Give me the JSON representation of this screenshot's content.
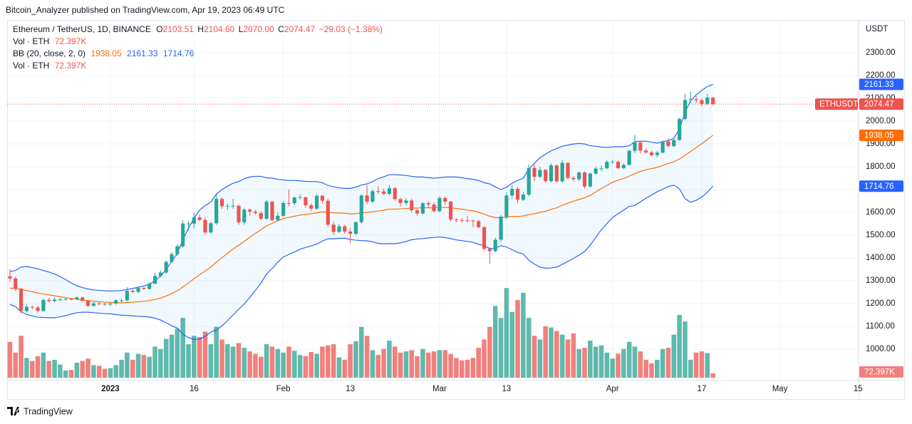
{
  "chart_data": {
    "type": "candlestick",
    "publisher_line": "Bitcoin_Analyzer published on TradingView.com, Apr 19, 2023 06:49 UTC",
    "symbol": "Ethereum / TetherUS, 1D, BINANCE",
    "ohlc_prefixes": [
      "O",
      "H",
      "L",
      "C"
    ],
    "high_label": "2104.60",
    "low_label": "2070.00",
    "change": "−29.03 (−1.38%)",
    "volume_title": "Vol · ETH",
    "last_volume_label": "72.397K",
    "currency": "USDT",
    "ticker": "ETHUSDT",
    "brand": "TradingView",
    "up_color": "#26a69a",
    "down_color": "#ef5350",
    "volume_up_color": "#5fb9ac",
    "volume_down_color": "#f0807c",
    "grid": true,
    "ylim": [
      868.75,
      2443.75
    ],
    "yticks": [
      {
        "value": 1000,
        "label": "1000.00"
      },
      {
        "value": 1100,
        "label": "1100.00"
      },
      {
        "value": 1200,
        "label": "1200.00"
      },
      {
        "value": 1300,
        "label": "1300.00"
      },
      {
        "value": 1400,
        "label": "1400.00"
      },
      {
        "value": 1500,
        "label": "1500.00"
      },
      {
        "value": 1600,
        "label": "1600.00"
      },
      {
        "value": 1700,
        "label": "1700.00"
      },
      {
        "value": 1800,
        "label": "1800.00"
      },
      {
        "value": 1900,
        "label": "1900.00"
      },
      {
        "value": 2000,
        "label": "2000.00"
      },
      {
        "value": 2100,
        "label": "2100.00"
      },
      {
        "value": 2200,
        "label": "2200.00"
      },
      {
        "value": 2300,
        "label": "2300.00"
      }
    ],
    "xlim": [
      -0.5,
      152.1
    ],
    "xticks": [
      {
        "value": 18,
        "label": "2023"
      },
      {
        "value": 33,
        "label": "16"
      },
      {
        "value": 49,
        "label": "Feb"
      },
      {
        "value": 61,
        "label": "13"
      },
      {
        "value": 77,
        "label": "Mar"
      },
      {
        "value": 89,
        "label": "13"
      },
      {
        "value": 108,
        "label": "Apr"
      },
      {
        "value": 124,
        "label": "17"
      },
      {
        "value": 138,
        "label": "May"
      },
      {
        "value": 152,
        "label": "15"
      }
    ],
    "volume_lim": [
      0,
      1550000
    ],
    "open": [
      1320,
      1310,
      1265,
      1167,
      1186,
      1183,
      1168,
      1216,
      1211,
      1218,
      1218,
      1220,
      1219,
      1227,
      1212,
      1190,
      1201,
      1199,
      1196,
      1200,
      1214,
      1214,
      1256,
      1251,
      1269,
      1264,
      1287,
      1321,
      1336,
      1383,
      1417,
      1451,
      1551,
      1551,
      1578,
      1567,
      1512,
      1552,
      1659,
      1627,
      1628,
      1629,
      1556,
      1612,
      1603,
      1597,
      1572,
      1647,
      1566,
      1585,
      1641,
      1640,
      1665,
      1667,
      1631,
      1616,
      1673,
      1651,
      1546,
      1514,
      1539,
      1516,
      1506,
      1557,
      1674,
      1647,
      1693,
      1692,
      1681,
      1706,
      1658,
      1641,
      1652,
      1609,
      1595,
      1640,
      1634,
      1605,
      1663,
      1647,
      1569,
      1566,
      1565,
      1564,
      1562,
      1535,
      1440,
      1430,
      1480,
      1581,
      1674,
      1703,
      1655,
      1678,
      1795,
      1756,
      1786,
      1737,
      1806,
      1736,
      1817,
      1751,
      1745,
      1775,
      1713,
      1770,
      1792,
      1793,
      1822,
      1822,
      1794,
      1808,
      1870,
      1907,
      1871,
      1863,
      1851,
      1862,
      1911,
      1891,
      1917,
      2010,
      2093,
      2096,
      2092,
      2076,
      2103.51
    ],
    "high": [
      1350,
      1318,
      1270,
      1195,
      1192,
      1192,
      1222,
      1225,
      1228,
      1225,
      1226,
      1224,
      1232,
      1230,
      1216,
      1207,
      1206,
      1203,
      1205,
      1220,
      1222,
      1272,
      1262,
      1275,
      1270,
      1292,
      1335,
      1345,
      1390,
      1425,
      1460,
      1565,
      1562,
      1600,
      1590,
      1580,
      1560,
      1680,
      1665,
      1640,
      1660,
      1635,
      1620,
      1618,
      1610,
      1605,
      1655,
      1650,
      1600,
      1650,
      1700,
      1670,
      1680,
      1655,
      1640,
      1680,
      1675,
      1660,
      1560,
      1550,
      1545,
      1530,
      1560,
      1680,
      1720,
      1700,
      1715,
      1705,
      1720,
      1712,
      1665,
      1662,
      1660,
      1615,
      1645,
      1650,
      1645,
      1670,
      1670,
      1650,
      1575,
      1575,
      1585,
      1568,
      1568,
      1540,
      1445,
      1490,
      1590,
      1690,
      1720,
      1712,
      1690,
      1810,
      1810,
      1800,
      1790,
      1815,
      1810,
      1830,
      1820,
      1760,
      1780,
      1780,
      1775,
      1800,
      1805,
      1830,
      1830,
      1828,
      1815,
      1875,
      1940,
      1910,
      1880,
      1870,
      1870,
      1915,
      1925,
      1925,
      2015,
      2120,
      2130,
      2110,
      2100,
      2120,
      2104.6
    ],
    "low": [
      1295,
      1255,
      1158,
      1160,
      1175,
      1160,
      1162,
      1205,
      1205,
      1210,
      1214,
      1215,
      1215,
      1208,
      1185,
      1187,
      1193,
      1190,
      1190,
      1195,
      1205,
      1210,
      1245,
      1245,
      1260,
      1262,
      1285,
      1315,
      1330,
      1380,
      1410,
      1445,
      1520,
      1530,
      1560,
      1500,
      1505,
      1545,
      1615,
      1610,
      1615,
      1545,
      1545,
      1585,
      1590,
      1565,
      1565,
      1560,
      1560,
      1580,
      1625,
      1630,
      1655,
      1620,
      1605,
      1610,
      1640,
      1535,
      1500,
      1510,
      1505,
      1465,
      1500,
      1550,
      1635,
      1640,
      1680,
      1675,
      1675,
      1650,
      1625,
      1630,
      1600,
      1585,
      1590,
      1620,
      1600,
      1600,
      1635,
      1560,
      1555,
      1555,
      1555,
      1535,
      1530,
      1430,
      1375,
      1425,
      1470,
      1570,
      1660,
      1640,
      1650,
      1670,
      1735,
      1750,
      1730,
      1730,
      1730,
      1730,
      1745,
      1735,
      1738,
      1705,
      1710,
      1765,
      1780,
      1790,
      1815,
      1790,
      1790,
      1805,
      1860,
      1858,
      1858,
      1845,
      1840,
      1858,
      1885,
      1885,
      1915,
      2005,
      2080,
      2080,
      2065,
      2070,
      2070
    ],
    "close": [
      1310,
      1265,
      1167,
      1186,
      1183,
      1168,
      1216,
      1211,
      1218,
      1218,
      1220,
      1219,
      1227,
      1212,
      1190,
      1201,
      1199,
      1196,
      1200,
      1214,
      1214,
      1256,
      1251,
      1269,
      1264,
      1287,
      1321,
      1336,
      1383,
      1417,
      1451,
      1551,
      1551,
      1578,
      1567,
      1512,
      1552,
      1659,
      1627,
      1628,
      1629,
      1556,
      1612,
      1603,
      1597,
      1572,
      1647,
      1566,
      1585,
      1641,
      1640,
      1665,
      1667,
      1631,
      1616,
      1673,
      1651,
      1546,
      1514,
      1539,
      1516,
      1506,
      1557,
      1674,
      1647,
      1693,
      1692,
      1681,
      1706,
      1658,
      1641,
      1652,
      1609,
      1595,
      1640,
      1634,
      1605,
      1663,
      1647,
      1569,
      1566,
      1565,
      1564,
      1562,
      1535,
      1440,
      1430,
      1480,
      1581,
      1674,
      1703,
      1655,
      1678,
      1795,
      1756,
      1786,
      1737,
      1806,
      1736,
      1817,
      1751,
      1745,
      1775,
      1713,
      1770,
      1792,
      1793,
      1822,
      1822,
      1794,
      1808,
      1870,
      1907,
      1871,
      1863,
      1851,
      1862,
      1911,
      1891,
      1917,
      2010,
      2093,
      2096,
      2092,
      2076,
      2103.51,
      2074.47
    ],
    "volume": [
      600000,
      420000,
      700000,
      330000,
      280000,
      360000,
      420000,
      280000,
      300000,
      220000,
      120000,
      130000,
      250000,
      280000,
      320000,
      210000,
      200000,
      150000,
      160000,
      210000,
      300000,
      420000,
      300000,
      400000,
      380000,
      350000,
      520000,
      480000,
      650000,
      720000,
      820000,
      1000000,
      560000,
      700000,
      680000,
      770000,
      560000,
      850000,
      640000,
      560000,
      520000,
      580000,
      500000,
      440000,
      400000,
      350000,
      560000,
      520000,
      480000,
      420000,
      520000,
      450000,
      380000,
      360000,
      430000,
      400000,
      520000,
      540000,
      560000,
      340000,
      300000,
      560000,
      610000,
      850000,
      700000,
      460000,
      380000,
      480000,
      620000,
      520000,
      420000,
      440000,
      460000,
      360000,
      480000,
      420000,
      440000,
      460000,
      460000,
      400000,
      330000,
      290000,
      300000,
      330000,
      500000,
      640000,
      850000,
      1200000,
      1000000,
      1500000,
      1100000,
      1300000,
      1420000,
      1000000,
      700000,
      640000,
      860000,
      840000,
      780000,
      720000,
      640000,
      740000,
      480000,
      500000,
      620000,
      520000,
      540000,
      420000,
      320000,
      400000,
      480000,
      600000,
      520000,
      440000,
      300000,
      240000,
      300000,
      480000,
      500000,
      720000,
      1050000,
      940000,
      300000,
      420000,
      440000,
      410000,
      72397
    ],
    "bollinger": {
      "label": "BB (20, close, 2, 0)",
      "upper_color": "#2962ff",
      "middle_color": "#ff6d00",
      "lower_color": "#2962ff",
      "fill_color": "#2196f3",
      "upper": [
        1340,
        1345,
        1360,
        1362,
        1358,
        1352,
        1345,
        1338,
        1330,
        1318,
        1305,
        1290,
        1278,
        1270,
        1264,
        1260,
        1258,
        1256,
        1255,
        1256,
        1257,
        1262,
        1266,
        1272,
        1277,
        1285,
        1300,
        1320,
        1350,
        1385,
        1420,
        1480,
        1530,
        1575,
        1610,
        1630,
        1645,
        1680,
        1700,
        1715,
        1728,
        1735,
        1748,
        1755,
        1758,
        1758,
        1752,
        1750,
        1745,
        1742,
        1740,
        1740,
        1738,
        1736,
        1735,
        1735,
        1730,
        1718,
        1712,
        1708,
        1705,
        1705,
        1710,
        1720,
        1725,
        1735,
        1748,
        1756,
        1765,
        1765,
        1764,
        1762,
        1758,
        1755,
        1755,
        1752,
        1750,
        1752,
        1755,
        1755,
        1755,
        1752,
        1748,
        1745,
        1740,
        1730,
        1725,
        1712,
        1700,
        1710,
        1728,
        1740,
        1750,
        1790,
        1815,
        1840,
        1855,
        1870,
        1880,
        1890,
        1895,
        1900,
        1902,
        1900,
        1892,
        1890,
        1886,
        1885,
        1887,
        1888,
        1888,
        1892,
        1910,
        1912,
        1912,
        1908,
        1904,
        1910,
        1915,
        1925,
        1965,
        2040,
        2090,
        2115,
        2135,
        2152,
        2161.33
      ],
      "middle": [
        1268,
        1266,
        1262,
        1257,
        1252,
        1246,
        1242,
        1238,
        1234,
        1230,
        1226,
        1222,
        1219,
        1216,
        1213,
        1210,
        1208,
        1206,
        1205,
        1204,
        1203,
        1205,
        1206,
        1208,
        1210,
        1213,
        1218,
        1224,
        1233,
        1244,
        1256,
        1273,
        1290,
        1309,
        1327,
        1343,
        1360,
        1382,
        1401,
        1420,
        1439,
        1455,
        1473,
        1491,
        1508,
        1524,
        1541,
        1552,
        1563,
        1573,
        1578,
        1583,
        1588,
        1591,
        1594,
        1598,
        1602,
        1601,
        1598,
        1597,
        1596,
        1593,
        1594,
        1598,
        1600,
        1603,
        1606,
        1609,
        1614,
        1614,
        1615,
        1617,
        1619,
        1619,
        1620,
        1620,
        1620,
        1622,
        1622,
        1620,
        1617,
        1614,
        1610,
        1607,
        1600,
        1592,
        1583,
        1577,
        1577,
        1579,
        1582,
        1582,
        1584,
        1590,
        1594,
        1600,
        1605,
        1613,
        1620,
        1631,
        1640,
        1649,
        1657,
        1664,
        1674,
        1690,
        1705,
        1718,
        1732,
        1741,
        1749,
        1759,
        1770,
        1779,
        1787,
        1792,
        1797,
        1806,
        1814,
        1822,
        1834,
        1850,
        1867,
        1884,
        1901,
        1920,
        1938.05
      ],
      "lower": [
        1196,
        1187,
        1164,
        1152,
        1146,
        1140,
        1139,
        1138,
        1138,
        1142,
        1147,
        1154,
        1160,
        1162,
        1162,
        1160,
        1158,
        1156,
        1155,
        1152,
        1149,
        1148,
        1146,
        1144,
        1143,
        1141,
        1136,
        1128,
        1116,
        1103,
        1092,
        1066,
        1050,
        1043,
        1044,
        1056,
        1075,
        1084,
        1102,
        1125,
        1150,
        1175,
        1198,
        1227,
        1258,
        1290,
        1330,
        1354,
        1381,
        1404,
        1416,
        1426,
        1438,
        1446,
        1453,
        1461,
        1474,
        1484,
        1484,
        1486,
        1487,
        1481,
        1478,
        1476,
        1475,
        1471,
        1464,
        1462,
        1463,
        1463,
        1466,
        1472,
        1480,
        1483,
        1485,
        1488,
        1490,
        1492,
        1489,
        1485,
        1479,
        1476,
        1472,
        1469,
        1460,
        1454,
        1441,
        1442,
        1454,
        1448,
        1436,
        1424,
        1418,
        1390,
        1373,
        1360,
        1355,
        1356,
        1360,
        1372,
        1385,
        1398,
        1412,
        1428,
        1456,
        1490,
        1524,
        1551,
        1577,
        1594,
        1610,
        1626,
        1630,
        1646,
        1662,
        1676,
        1690,
        1702,
        1713,
        1719,
        1703,
        1660,
        1644,
        1653,
        1667,
        1688,
        1714.76
      ]
    }
  }
}
